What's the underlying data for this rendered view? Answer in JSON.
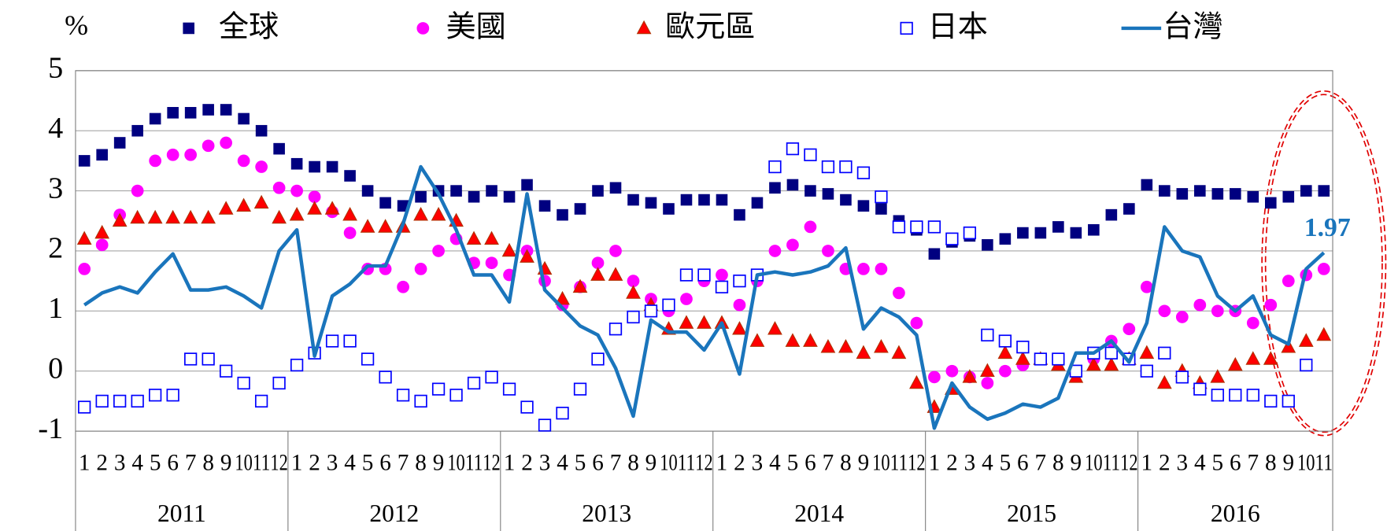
{
  "chart_data": {
    "type": "line",
    "y_label": "%",
    "categories": [
      "1",
      "2",
      "3",
      "4",
      "5",
      "6",
      "7",
      "8",
      "9",
      "10",
      "11",
      "12",
      "1",
      "2",
      "3",
      "4",
      "5",
      "6",
      "7",
      "8",
      "9",
      "10",
      "11",
      "12",
      "1",
      "2",
      "3",
      "4",
      "5",
      "6",
      "7",
      "8",
      "9",
      "10",
      "11",
      "12",
      "1",
      "2",
      "3",
      "4",
      "5",
      "6",
      "7",
      "8",
      "9",
      "10",
      "11",
      "12",
      "1",
      "2",
      "3",
      "4",
      "5",
      "6",
      "7",
      "8",
      "9",
      "10",
      "11",
      "12",
      "1",
      "2",
      "3",
      "4",
      "5",
      "6",
      "7",
      "8",
      "9",
      "10",
      "11"
    ],
    "years": [
      "2011",
      "2012",
      "2013",
      "2014",
      "2015",
      "2016"
    ],
    "ylim": [
      -1,
      5
    ],
    "yticks": [
      -1,
      0,
      1,
      2,
      3,
      4,
      5
    ],
    "grid": true,
    "series": [
      {
        "name": "全球",
        "marker": "square",
        "color": "#000080",
        "values": [
          3.5,
          3.6,
          3.8,
          4.0,
          4.2,
          4.3,
          4.3,
          4.35,
          4.35,
          4.2,
          4.0,
          3.7,
          3.45,
          3.4,
          3.4,
          3.25,
          3.0,
          2.8,
          2.75,
          2.9,
          3.0,
          3.0,
          2.9,
          3.0,
          2.9,
          3.1,
          2.75,
          2.6,
          2.7,
          3.0,
          3.05,
          2.85,
          2.8,
          2.7,
          2.85,
          2.85,
          2.85,
          2.6,
          2.8,
          3.05,
          3.1,
          3.0,
          2.95,
          2.85,
          2.75,
          2.7,
          2.5,
          2.35,
          1.95,
          2.15,
          2.25,
          2.1,
          2.2,
          2.3,
          2.3,
          2.4,
          2.3,
          2.35,
          2.6,
          2.7,
          3.1,
          3.0,
          2.95,
          3.0,
          2.95,
          2.95,
          2.9,
          2.8,
          2.9,
          3.0,
          3.0
        ]
      },
      {
        "name": "美國",
        "marker": "circle",
        "color": "#ff00ff",
        "values": [
          1.7,
          2.1,
          2.6,
          3.0,
          3.5,
          3.6,
          3.6,
          3.75,
          3.8,
          3.5,
          3.4,
          3.05,
          3.0,
          2.9,
          2.65,
          2.3,
          1.7,
          1.7,
          1.4,
          1.7,
          2.0,
          2.2,
          1.8,
          1.8,
          1.6,
          2.0,
          1.5,
          1.1,
          1.4,
          1.8,
          2.0,
          1.5,
          1.2,
          1.0,
          1.2,
          1.5,
          1.6,
          1.1,
          1.5,
          2.0,
          2.1,
          2.4,
          2.0,
          1.7,
          1.7,
          1.7,
          1.3,
          0.8,
          -0.1,
          0.0,
          -0.1,
          -0.2,
          0.0,
          0.1,
          0.2,
          0.2,
          0.0,
          0.2,
          0.5,
          0.7,
          1.4,
          1.0,
          0.9,
          1.1,
          1.0,
          1.0,
          0.8,
          1.1,
          1.5,
          1.6,
          1.7
        ]
      },
      {
        "name": "歐元區",
        "marker": "triangle",
        "color": "#ff0000",
        "values": [
          2.2,
          2.3,
          2.5,
          2.55,
          2.55,
          2.55,
          2.55,
          2.55,
          2.7,
          2.75,
          2.8,
          2.55,
          2.6,
          2.7,
          2.7,
          2.6,
          2.4,
          2.4,
          2.4,
          2.6,
          2.6,
          2.5,
          2.2,
          2.2,
          2.0,
          1.9,
          1.7,
          1.2,
          1.4,
          1.6,
          1.6,
          1.3,
          1.1,
          0.7,
          0.8,
          0.8,
          0.8,
          0.7,
          0.5,
          0.7,
          0.5,
          0.5,
          0.4,
          0.4,
          0.3,
          0.4,
          0.3,
          -0.2,
          -0.6,
          -0.3,
          -0.1,
          0.0,
          0.3,
          0.2,
          0.2,
          0.1,
          -0.1,
          0.1,
          0.1,
          0.2,
          0.3,
          -0.2,
          0.0,
          -0.2,
          -0.1,
          0.1,
          0.2,
          0.2,
          0.4,
          0.5,
          0.6
        ]
      },
      {
        "name": "日本",
        "marker": "open-square",
        "color": "#0000ff",
        "values": [
          -0.6,
          -0.5,
          -0.5,
          -0.5,
          -0.4,
          -0.4,
          0.2,
          0.2,
          0.0,
          -0.2,
          -0.5,
          -0.2,
          0.1,
          0.3,
          0.5,
          0.5,
          0.2,
          -0.1,
          -0.4,
          -0.5,
          -0.3,
          -0.4,
          -0.2,
          -0.1,
          -0.3,
          -0.6,
          -0.9,
          -0.7,
          -0.3,
          0.2,
          0.7,
          0.9,
          1.0,
          1.1,
          1.6,
          1.6,
          1.4,
          1.5,
          1.6,
          3.4,
          3.7,
          3.6,
          3.4,
          3.4,
          3.3,
          2.9,
          2.4,
          2.4,
          2.4,
          2.2,
          2.3,
          0.6,
          0.5,
          0.4,
          0.2,
          0.2,
          0.0,
          0.3,
          0.3,
          0.2,
          0.0,
          0.3,
          -0.1,
          -0.3,
          -0.4,
          -0.4,
          -0.4,
          -0.5,
          -0.5,
          0.1,
          null
        ]
      },
      {
        "name": "台灣",
        "marker": "line",
        "color": "#1a75bc",
        "values": [
          1.1,
          1.3,
          1.4,
          1.3,
          1.65,
          1.95,
          1.35,
          1.35,
          1.4,
          1.25,
          1.05,
          2.0,
          2.35,
          0.25,
          1.25,
          1.45,
          1.75,
          1.75,
          2.45,
          3.4,
          2.95,
          2.35,
          1.6,
          1.6,
          1.15,
          2.95,
          1.35,
          1.05,
          0.75,
          0.6,
          0.05,
          -0.75,
          0.85,
          0.65,
          0.65,
          0.35,
          0.8,
          -0.05,
          1.6,
          1.65,
          1.6,
          1.65,
          1.75,
          2.05,
          0.7,
          1.05,
          0.9,
          0.6,
          -0.95,
          -0.2,
          -0.6,
          -0.8,
          -0.7,
          -0.55,
          -0.6,
          -0.45,
          0.3,
          0.3,
          0.5,
          0.15,
          0.8,
          2.4,
          2.0,
          1.9,
          1.25,
          1.0,
          1.25,
          0.6,
          0.45,
          1.7,
          1.97
        ]
      }
    ],
    "annotations": [
      {
        "text": "1.97",
        "series": 4,
        "index": 70
      }
    ]
  }
}
